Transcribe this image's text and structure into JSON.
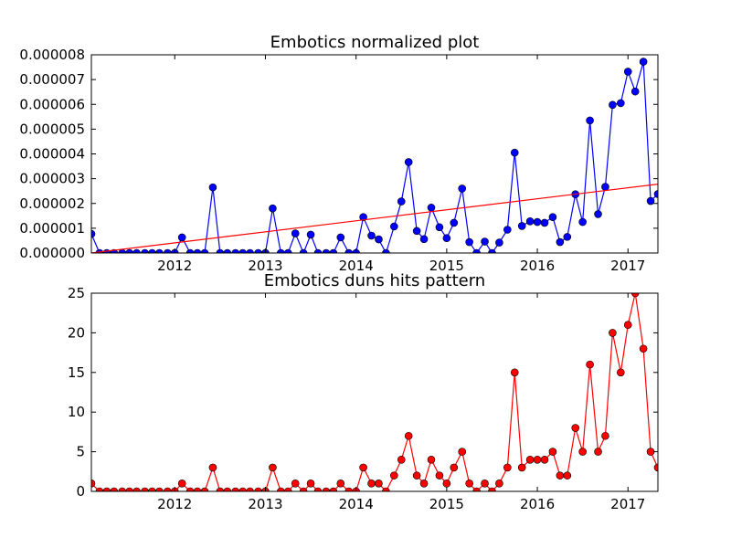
{
  "chart_data": [
    {
      "type": "line",
      "title": "Embotics normalized plot",
      "xlabel": "",
      "ylabel": "",
      "x_tick_labels": [
        "2012",
        "2013",
        "2014",
        "2015",
        "2016",
        "2017"
      ],
      "x_ticks": [
        2012,
        2013,
        2014,
        2015,
        2016,
        2017
      ],
      "y_tick_labels": [
        "0.000000",
        "0.000001",
        "0.000002",
        "0.000003",
        "0.000004",
        "0.000005",
        "0.000006",
        "0.000007",
        "0.000008"
      ],
      "y_ticks": [
        0,
        1e-06,
        2e-06,
        3e-06,
        4e-06,
        5e-06,
        6e-06,
        7e-06,
        8e-06
      ],
      "xlim": [
        2011.08,
        2017.33
      ],
      "ylim": [
        0,
        8e-06
      ],
      "grid": false,
      "series": [
        {
          "color": "#0000ff",
          "marker": "circle",
          "marker_color": "#0000ff",
          "x": [
            2011.08,
            2011.17,
            2011.25,
            2011.33,
            2011.42,
            2011.5,
            2011.58,
            2011.67,
            2011.75,
            2011.83,
            2011.92,
            2012.0,
            2012.08,
            2012.17,
            2012.25,
            2012.33,
            2012.42,
            2012.5,
            2012.58,
            2012.67,
            2012.75,
            2012.83,
            2012.92,
            2013.0,
            2013.08,
            2013.17,
            2013.25,
            2013.33,
            2013.42,
            2013.5,
            2013.58,
            2013.67,
            2013.75,
            2013.83,
            2013.92,
            2014.0,
            2014.08,
            2014.17,
            2014.25,
            2014.33,
            2014.42,
            2014.5,
            2014.58,
            2014.67,
            2014.75,
            2014.83,
            2014.92,
            2015.0,
            2015.08,
            2015.17,
            2015.25,
            2015.33,
            2015.42,
            2015.5,
            2015.58,
            2015.67,
            2015.75,
            2015.83,
            2015.92,
            2016.0,
            2016.08,
            2016.17,
            2016.25,
            2016.33,
            2016.42,
            2016.5,
            2016.58,
            2016.67,
            2016.75,
            2016.83,
            2016.92,
            2017.0,
            2017.08,
            2017.17,
            2017.25,
            2017.33
          ],
          "y": [
            7.7e-07,
            0,
            0,
            0,
            0,
            0,
            0,
            0,
            0,
            0,
            0,
            0,
            6.3e-07,
            0,
            0,
            0,
            2.65e-06,
            0,
            0,
            0,
            0,
            0,
            0,
            0,
            1.8e-06,
            0,
            0,
            7.9e-07,
            0,
            7.4e-07,
            0,
            0,
            0,
            6.3e-07,
            0,
            0,
            1.45e-06,
            7e-07,
            5.5e-07,
            0,
            1.07e-06,
            2.08e-06,
            3.67e-06,
            8.9e-07,
            5.6e-07,
            1.83e-06,
            1.04e-06,
            6e-07,
            1.22e-06,
            2.6e-06,
            4.4e-07,
            0,
            4.6e-07,
            0,
            4.2e-07,
            9.4e-07,
            4.05e-06,
            1.09e-06,
            1.28e-06,
            1.25e-06,
            1.22e-06,
            1.45e-06,
            4.4e-07,
            6.5e-07,
            2.37e-06,
            1.25e-06,
            5.35e-06,
            1.57e-06,
            2.67e-06,
            5.98e-06,
            6.05e-06,
            7.32e-06,
            6.52e-06,
            7.72e-06,
            2.1e-06,
            2.38e-06
          ]
        },
        {
          "color": "#ff0000",
          "marker": "none",
          "x": [
            2011.08,
            2017.33
          ],
          "y": [
            0,
            2.78e-06
          ]
        }
      ]
    },
    {
      "type": "line",
      "title": "Embotics duns hits pattern",
      "xlabel": "",
      "ylabel": "",
      "x_tick_labels": [
        "2012",
        "2013",
        "2014",
        "2015",
        "2016",
        "2017"
      ],
      "x_ticks": [
        2012,
        2013,
        2014,
        2015,
        2016,
        2017
      ],
      "y_tick_labels": [
        "0",
        "5",
        "10",
        "15",
        "20",
        "25"
      ],
      "y_ticks": [
        0,
        5,
        10,
        15,
        20,
        25
      ],
      "xlim": [
        2011.08,
        2017.33
      ],
      "ylim": [
        0,
        25
      ],
      "grid": false,
      "series": [
        {
          "color": "#ff0000",
          "marker": "circle",
          "marker_color": "#ff0000",
          "x": [
            2011.08,
            2011.17,
            2011.25,
            2011.33,
            2011.42,
            2011.5,
            2011.58,
            2011.67,
            2011.75,
            2011.83,
            2011.92,
            2012.0,
            2012.08,
            2012.17,
            2012.25,
            2012.33,
            2012.42,
            2012.5,
            2012.58,
            2012.67,
            2012.75,
            2012.83,
            2012.92,
            2013.0,
            2013.08,
            2013.17,
            2013.25,
            2013.33,
            2013.42,
            2013.5,
            2013.58,
            2013.67,
            2013.75,
            2013.83,
            2013.92,
            2014.0,
            2014.08,
            2014.17,
            2014.25,
            2014.33,
            2014.42,
            2014.5,
            2014.58,
            2014.67,
            2014.75,
            2014.83,
            2014.92,
            2015.0,
            2015.08,
            2015.17,
            2015.25,
            2015.33,
            2015.42,
            2015.5,
            2015.58,
            2015.67,
            2015.75,
            2015.83,
            2015.92,
            2016.0,
            2016.08,
            2016.17,
            2016.25,
            2016.33,
            2016.42,
            2016.5,
            2016.58,
            2016.67,
            2016.75,
            2016.83,
            2016.92,
            2017.0,
            2017.08,
            2017.17,
            2017.25,
            2017.33
          ],
          "y": [
            1,
            0,
            0,
            0,
            0,
            0,
            0,
            0,
            0,
            0,
            0,
            0,
            1,
            0,
            0,
            0,
            3,
            0,
            0,
            0,
            0,
            0,
            0,
            0,
            3,
            0,
            0,
            1,
            0,
            1,
            0,
            0,
            0,
            1,
            0,
            0,
            3,
            1,
            1,
            0,
            2,
            4,
            7,
            2,
            1,
            4,
            2,
            1,
            3,
            5,
            1,
            0,
            1,
            0,
            1,
            3,
            15,
            3,
            4,
            4,
            4,
            5,
            2,
            2,
            8,
            5,
            16,
            5,
            7,
            20,
            15,
            21,
            25,
            18,
            5,
            3
          ]
        }
      ]
    }
  ]
}
